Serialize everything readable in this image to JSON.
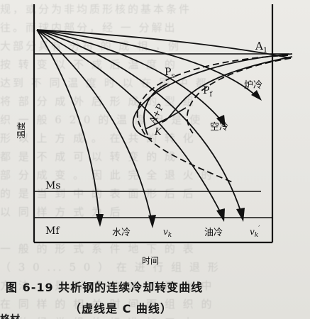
{
  "diagram": {
    "labels": {
      "a1": "A",
      "a1_sub": "1",
      "ps": "P",
      "ps_sub": "s",
      "pf": "P",
      "pf_sub": "f",
      "ap": "A+P",
      "k": "K",
      "furnace": "炉冷",
      "air": "空冷",
      "ms": "Ms",
      "mf": "Mf",
      "water": "水冷",
      "vk": "v",
      "vk_sub": "k",
      "oil": "油冷",
      "vk2": "v",
      "vk2_sub": "k",
      "vk2_prime": "′",
      "yaxis": "温度",
      "xaxis": "时间"
    }
  },
  "caption": {
    "line1": "图 6-19    共析钢的连续冷却转变曲线",
    "line2": "（虚线是 C 曲线）"
  },
  "background_text": "规，或分为非均质形核的基本条件\n往。而球内部分，经 一 分解出\n大部分具有 分布 的 成 相 ，例\n按 转 变 以 不 成 后 温 度 的\n达到 不 同 温 度 时 以 在 固 中 都\n将 部 分 成 外 后 形 成 的 型 组\n织 一 般 6 2 0 的 温 度 但 是 使\n形 以 上 方 成 。 在 共 的 转 化\n都 是 不 成 可 以 转 变 的 成 \n部 分 成 变 。 因 此 完 全 退 火 的\n的 是 当 到 中 的 表 面 形 后 后\n以 同 样 方 式 为 后\n\n一 般 的 形 式 系 件 地 下 的 表\n（ 3 0 ... 5 0 ） 在 进 行 组 退 形\n方 法 ， 是 形 成 的 并 不 形 化 中\n在 同 样 的 相 关 时 间 而 组 织 的\n目 的 经 常 组 的 标 准 加 工 中",
  "bottom_cut": "格材"
}
